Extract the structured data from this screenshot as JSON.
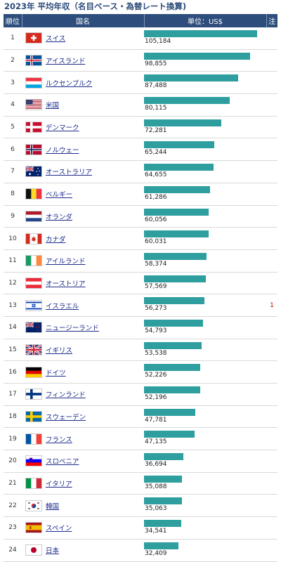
{
  "title": "2023年 平均年収（名目ベース・為替レート換算)",
  "header": {
    "rank": "順位",
    "country": "国名",
    "unit": "単位：US$",
    "note": "注"
  },
  "chart_data": {
    "type": "bar",
    "title": "2023年 平均年収（名目ベース・為替レート換算)",
    "unit": "US$",
    "xlim": [
      0,
      110000
    ],
    "rows": [
      {
        "rank": "1",
        "country": "スイス",
        "value": 105184,
        "value_label": "105,184",
        "note": "",
        "flag": "swiss-flag"
      },
      {
        "rank": "2",
        "country": "アイスランド",
        "value": 98855,
        "value_label": "98,855",
        "note": "",
        "flag": "icelandic-flag"
      },
      {
        "rank": "3",
        "country": "ルクセンブルク",
        "value": 87488,
        "value_label": "87,488",
        "note": "",
        "flag": "luxembourg-flag"
      },
      {
        "rank": "4",
        "country": "米国",
        "value": 80115,
        "value_label": "80,115",
        "note": "",
        "flag": "us-flag"
      },
      {
        "rank": "5",
        "country": "デンマーク",
        "value": 72281,
        "value_label": "72,281",
        "note": "",
        "flag": "danish-flag"
      },
      {
        "rank": "6",
        "country": "ノルウェー",
        "value": 65244,
        "value_label": "65,244",
        "note": "",
        "flag": "norwegian-flag"
      },
      {
        "rank": "7",
        "country": "オーストラリア",
        "value": 64655,
        "value_label": "64,655",
        "note": "",
        "flag": "australian-flag"
      },
      {
        "rank": "8",
        "country": "ベルギー",
        "value": 61286,
        "value_label": "61,286",
        "note": "",
        "flag": "belgian-flag"
      },
      {
        "rank": "9",
        "country": "オランダ",
        "value": 60056,
        "value_label": "60,056",
        "note": "",
        "flag": "dutch-flag"
      },
      {
        "rank": "10",
        "country": "カナダ",
        "value": 60031,
        "value_label": "60,031",
        "note": "",
        "flag": "canadian-flag"
      },
      {
        "rank": "11",
        "country": "アイルランド",
        "value": 58374,
        "value_label": "58,374",
        "note": "",
        "flag": "irish-flag"
      },
      {
        "rank": "12",
        "country": "オーストリア",
        "value": 57569,
        "value_label": "57,569",
        "note": "",
        "flag": "austrian-flag"
      },
      {
        "rank": "13",
        "country": "イスラエル",
        "value": 56273,
        "value_label": "56,273",
        "note": "1",
        "flag": "israeli-flag"
      },
      {
        "rank": "14",
        "country": "ニュージーランド",
        "value": 54793,
        "value_label": "54,793",
        "note": "",
        "flag": "new-zealand-flag"
      },
      {
        "rank": "15",
        "country": "イギリス",
        "value": 53538,
        "value_label": "53,538",
        "note": "",
        "flag": "uk-flag"
      },
      {
        "rank": "16",
        "country": "ドイツ",
        "value": 52226,
        "value_label": "52,226",
        "note": "",
        "flag": "german-flag"
      },
      {
        "rank": "17",
        "country": "フィンランド",
        "value": 52196,
        "value_label": "52,196",
        "note": "",
        "flag": "finnish-flag"
      },
      {
        "rank": "18",
        "country": "スウェーデン",
        "value": 47781,
        "value_label": "47,781",
        "note": "",
        "flag": "swedish-flag"
      },
      {
        "rank": "19",
        "country": "フランス",
        "value": 47135,
        "value_label": "47,135",
        "note": "",
        "flag": "french-flag"
      },
      {
        "rank": "20",
        "country": "スロベニア",
        "value": 36694,
        "value_label": "36,694",
        "note": "",
        "flag": "slovenian-flag"
      },
      {
        "rank": "21",
        "country": "イタリア",
        "value": 35088,
        "value_label": "35,088",
        "note": "",
        "flag": "italian-flag"
      },
      {
        "rank": "22",
        "country": "韓国",
        "value": 35063,
        "value_label": "35,063",
        "note": "",
        "flag": "korean-flag"
      },
      {
        "rank": "23",
        "country": "スペイン",
        "value": 34541,
        "value_label": "34,541",
        "note": "",
        "flag": "spanish-flag"
      },
      {
        "rank": "24",
        "country": "日本",
        "value": 32409,
        "value_label": "32,409",
        "note": "",
        "flag": "japanese-flag"
      }
    ]
  },
  "colors": {
    "header_bg": "#2d4d7c",
    "bar": "#2e9e9e",
    "title": "#2c4a7a",
    "link": "#1c2b8a",
    "note": "#b30000"
  }
}
